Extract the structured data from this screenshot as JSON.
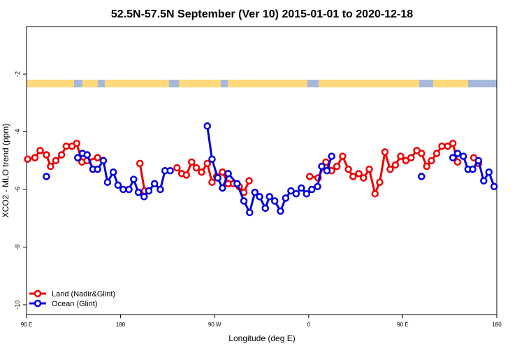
{
  "chart_data": {
    "type": "line",
    "title": "52.5N-57.5N September (Ver 10)   2015-01-01 to 2020-12-18",
    "xlabel": "Longitude (deg E)",
    "ylabel": "XCO2 - MLO trend (ppm)",
    "xlim": [
      90,
      540
    ],
    "xticks": [
      {
        "value": 90,
        "label": "90 E"
      },
      180,
      {
        "value": 270,
        "label": "90 W"
      },
      {
        "value": 360,
        "label": "0"
      },
      {
        "value": 450,
        "label": "90 E"
      },
      {
        "value": 540,
        "label": "180"
      }
    ],
    "ylim": [
      -10.34,
      -0.35
    ],
    "yticks": [
      -2,
      -4,
      -6,
      -8,
      -10
    ],
    "grid": false,
    "legend": "bottom-left",
    "series": [
      {
        "name": "Land (Nadir&Glint)",
        "color": "#ee0000",
        "x": [
          91,
          98,
          103,
          109,
          113,
          118,
          123.5,
          128,
          133.5,
          138,
          143,
          148,
          158,
          null,
          198.5,
          203,
          null,
          234,
          238.5,
          243,
          248,
          252.5,
          257.5,
          263,
          267.5,
          272,
          277.5,
          283,
          288,
          293.5,
          298,
          303,
          null,
          361,
          369,
          376.5,
          382,
          387,
          392.5,
          398,
          402.5,
          408,
          412.5,
          418,
          423.5,
          428,
          433,
          438,
          443,
          448,
          453,
          458,
          463.5,
          468,
          473,
          477.5,
          482.5,
          487.5,
          493,
          498,
          502.5,
          null,
          518,
          522.5
        ],
        "values": [
          -4.95,
          -4.9,
          -4.65,
          -4.8,
          -5.2,
          -5.0,
          -4.8,
          -4.5,
          -4.5,
          -4.4,
          -5.05,
          -5.0,
          -4.9,
          null,
          -5.1,
          -6.05,
          null,
          -5.25,
          -5.45,
          -5.5,
          -5.05,
          -5.25,
          -5.4,
          -5.1,
          -5.75,
          -5.55,
          -5.4,
          -5.8,
          -5.8,
          -5.9,
          -6.1,
          -5.7,
          null,
          -5.55,
          -5.6,
          -5.05,
          -5.35,
          -5.2,
          -4.85,
          -5.3,
          -5.55,
          -5.45,
          -5.6,
          -5.3,
          -6.15,
          -5.75,
          -4.7,
          -5.3,
          -5.15,
          -4.85,
          -5.0,
          -4.9,
          -4.65,
          -4.75,
          -5.2,
          -5.0,
          -4.75,
          -4.5,
          -4.5,
          -4.4,
          -5.05,
          null,
          -4.9,
          -5.1
        ]
      },
      {
        "name": "Ocean (Glint)",
        "color": "#0000dd",
        "x": [
          109,
          null,
          139,
          143.5,
          148,
          153.5,
          158,
          163.5,
          167.5,
          173,
          177.5,
          182.5,
          188,
          192.5,
          197,
          202.5,
          207,
          212.5,
          218,
          222.5,
          227.5,
          null,
          263,
          267.5,
          273,
          277.5,
          283,
          291.5,
          298,
          303.5,
          308.5,
          313,
          318.5,
          322.5,
          327.5,
          333,
          338,
          343,
          348,
          353,
          358,
          363,
          368.5,
          372.5,
          377.5,
          382,
          null,
          468,
          null,
          498,
          502.5,
          508,
          512.5,
          517,
          522.5,
          527.5,
          532.5,
          537.5
        ],
        "values": [
          -5.55,
          null,
          -4.9,
          -4.75,
          -4.8,
          -5.3,
          -5.3,
          -5.0,
          -5.75,
          -5.4,
          -5.85,
          -6.0,
          -6.0,
          -5.65,
          -6.1,
          -6.25,
          -6.05,
          -5.8,
          -6.0,
          -5.35,
          -5.35,
          null,
          -3.8,
          -4.95,
          -5.6,
          -5.95,
          -5.45,
          -5.8,
          -6.4,
          -6.8,
          -6.1,
          -6.25,
          -6.65,
          -6.25,
          -6.4,
          -6.75,
          -6.3,
          -6.05,
          -6.15,
          -5.95,
          -6.15,
          -6.0,
          -5.9,
          -5.2,
          -5.35,
          -4.85,
          null,
          -5.55,
          null,
          -4.9,
          -4.75,
          -4.85,
          -5.3,
          -5.3,
          -5.0,
          -5.7,
          -5.4,
          -5.9
        ]
      }
    ]
  }
}
